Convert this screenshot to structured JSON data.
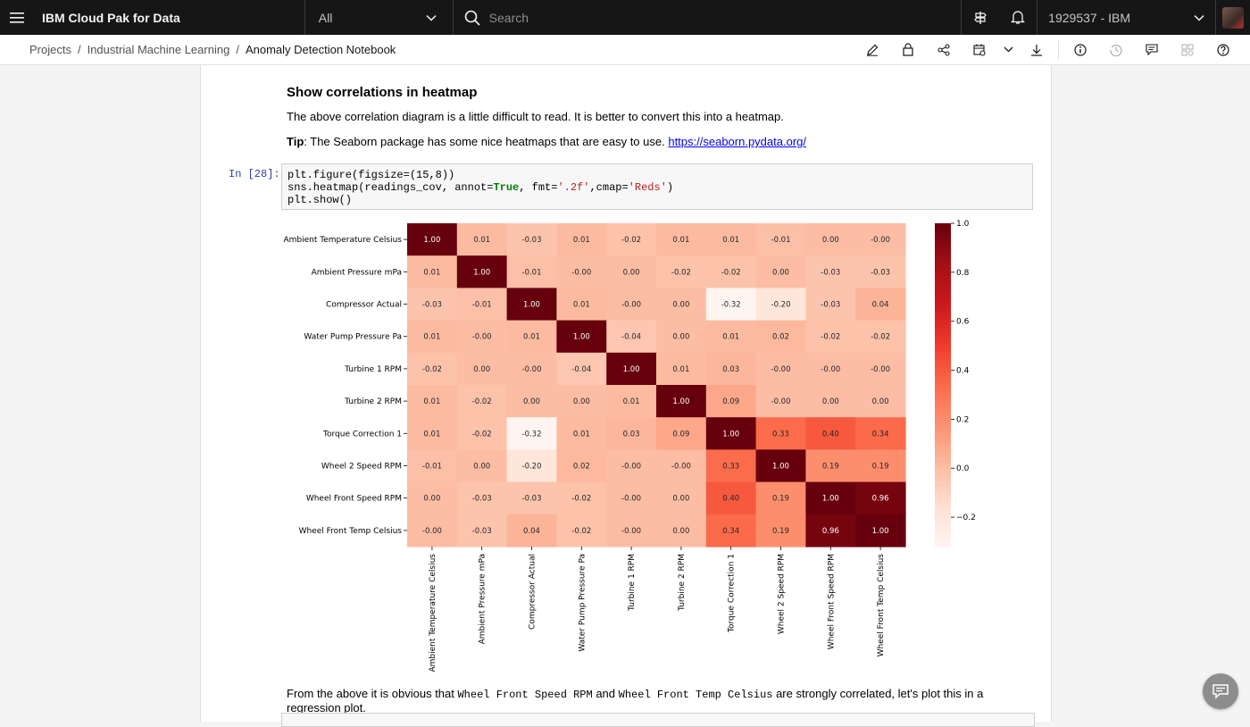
{
  "topbar": {
    "app_title": "IBM Cloud Pak for Data",
    "scope": "All",
    "search_placeholder": "Search",
    "account": "1929537 - IBM"
  },
  "breadcrumb": {
    "items": [
      "Projects",
      "Industrial Machine Learning"
    ],
    "current": "Anomaly Detection Notebook"
  },
  "notebook": {
    "heading": "Show correlations in heatmap",
    "para1": "The above correlation diagram is a little difficult to read. It is better to convert this into a heatmap.",
    "tip_label": "Tip",
    "tip_text": ": The Seaborn package has some nice heatmaps that are easy to use. ",
    "tip_link": "https://seaborn.pydata.org/",
    "prompt": "In [28]:",
    "code_line1": "plt.figure(figsize=(15,8))",
    "code_line2_a": "sns.heatmap(readings_cov, annot=",
    "code_line2_kw": "True",
    "code_line2_b": ", fmt=",
    "code_line2_s1": "'.2f'",
    "code_line2_c": ",cmap=",
    "code_line2_s2": "'Reds'",
    "code_line2_d": ")",
    "code_line3": "plt.show()",
    "para3_a": "From the above it is obvious that ",
    "para3_code1": "Wheel Front Speed RPM",
    "para3_b": " and ",
    "para3_code2": "Wheel Front Temp Celsius",
    "para3_c": " are strongly correlated, let's plot this in a regression plot."
  },
  "chart_data": {
    "type": "heatmap",
    "cmap": "Reds",
    "labels": [
      "Ambient Temperature Celsius",
      "Ambient Pressure mPa",
      "Compressor Actual",
      "Water Pump Pressure Pa",
      "Turbine 1 RPM",
      "Turbine 2 RPM",
      "Torque Correction 1",
      "Wheel 2 Speed RPM",
      "Wheel Front Speed RPM",
      "Wheel Front Temp Celsius"
    ],
    "matrix": [
      [
        "1.00",
        "0.01",
        "-0.03",
        "0.01",
        "-0.02",
        "0.01",
        "0.01",
        "-0.01",
        "0.00",
        "-0.00"
      ],
      [
        "0.01",
        "1.00",
        "-0.01",
        "-0.00",
        "0.00",
        "-0.02",
        "-0.02",
        "0.00",
        "-0.03",
        "-0.03"
      ],
      [
        "-0.03",
        "-0.01",
        "1.00",
        "0.01",
        "-0.00",
        "0.00",
        "-0.32",
        "-0.20",
        "-0.03",
        "0.04"
      ],
      [
        "0.01",
        "-0.00",
        "0.01",
        "1.00",
        "-0.04",
        "0.00",
        "0.01",
        "0.02",
        "-0.02",
        "-0.02"
      ],
      [
        "-0.02",
        "0.00",
        "-0.00",
        "-0.04",
        "1.00",
        "0.01",
        "0.03",
        "-0.00",
        "-0.00",
        "-0.00"
      ],
      [
        "0.01",
        "-0.02",
        "0.00",
        "0.00",
        "0.01",
        "1.00",
        "0.09",
        "-0.00",
        "0.00",
        "0.00"
      ],
      [
        "0.01",
        "-0.02",
        "-0.32",
        "0.01",
        "0.03",
        "0.09",
        "1.00",
        "0.33",
        "0.40",
        "0.34"
      ],
      [
        "-0.01",
        "0.00",
        "-0.20",
        "0.02",
        "-0.00",
        "-0.00",
        "0.33",
        "1.00",
        "0.19",
        "0.19"
      ],
      [
        "0.00",
        "-0.03",
        "-0.03",
        "-0.02",
        "-0.00",
        "0.00",
        "0.40",
        "0.19",
        "1.00",
        "0.96"
      ],
      [
        "-0.00",
        "-0.03",
        "0.04",
        "-0.02",
        "-0.00",
        "0.00",
        "0.34",
        "0.19",
        "0.96",
        "1.00"
      ]
    ],
    "colorbar_range": [
      -0.32,
      1.0
    ],
    "colorbar_ticks": [
      "1.0",
      "0.8",
      "0.6",
      "0.4",
      "0.2",
      "0.0",
      "−0.2"
    ]
  }
}
